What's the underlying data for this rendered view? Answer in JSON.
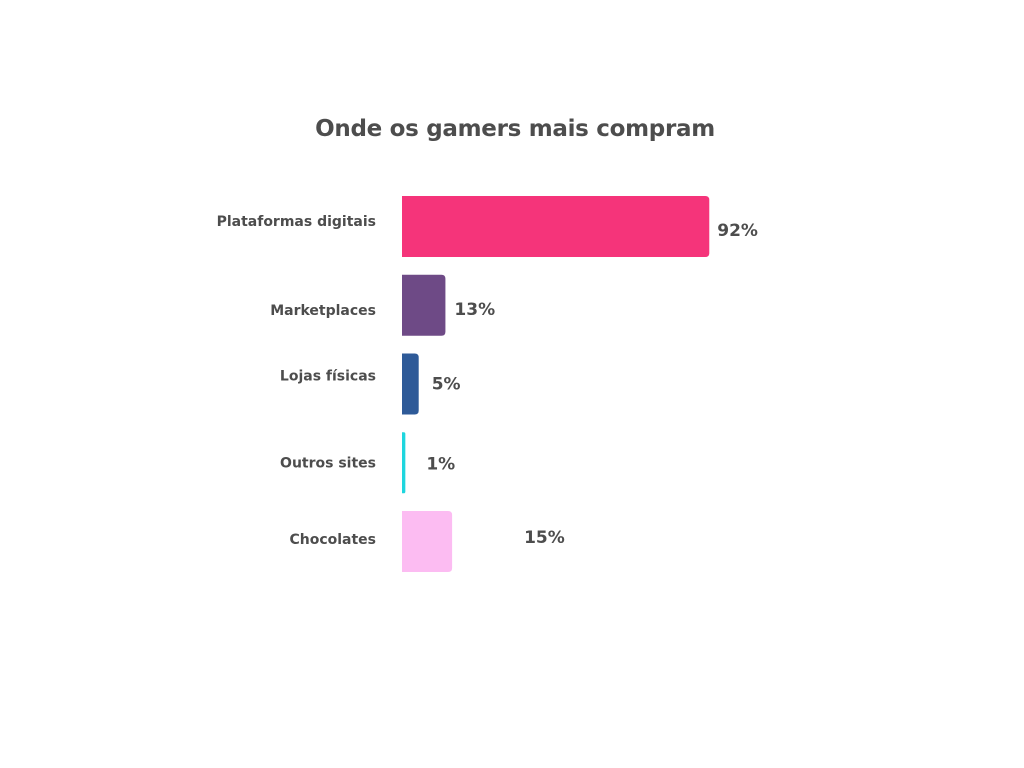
{
  "chart_data": {
    "type": "bar",
    "orientation": "horizontal",
    "title": "Onde os gamers mais compram",
    "categories": [
      "Plataformas digitais",
      "Marketplaces",
      "Lojas físicas",
      "Outros sites",
      "Chocolates"
    ],
    "values": [
      92,
      13,
      5,
      1,
      15
    ],
    "value_labels": [
      "92%",
      "13%",
      "5%",
      "1%",
      "15%"
    ],
    "unit": "%",
    "colors": [
      "#f5347a",
      "#6e4a86",
      "#2e5a98",
      "#1ed6de",
      "#fcbcf2"
    ],
    "xlim": [
      0,
      100
    ],
    "grid": false,
    "legend": "none"
  }
}
